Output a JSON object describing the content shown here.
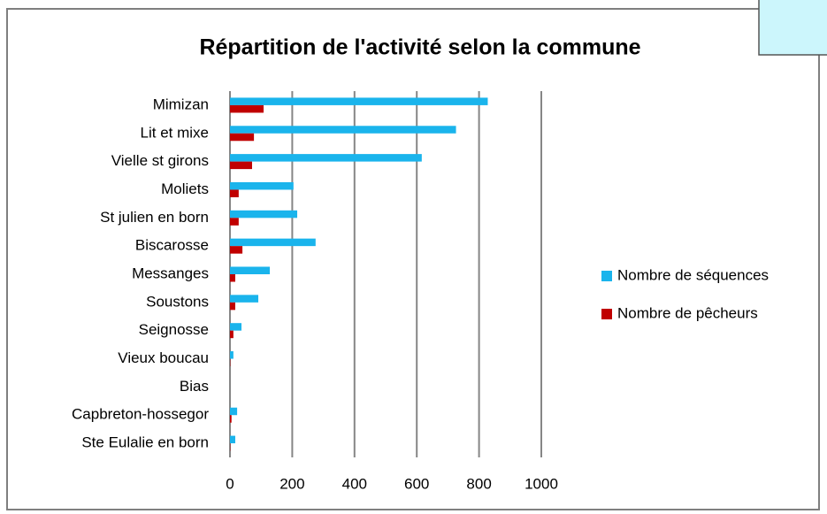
{
  "chart_data": {
    "type": "hbar",
    "title": "Répartition de l'activité selon la commune",
    "categories": [
      "Mimizan",
      "Lit et mixe",
      "Vielle st girons",
      "Moliets",
      "St julien en born",
      "Biscarosse",
      "Messanges",
      "Soustons",
      "Seignosse",
      "Vieux boucau",
      "Bias",
      "Capbreton-hossegor",
      "Ste Eulalie en born"
    ],
    "series": [
      {
        "name": "Nombre de séquences",
        "color": "#1ab4ec",
        "values": [
          828,
          726,
          616,
          204,
          216,
          275,
          128,
          91,
          37,
          11,
          0,
          23,
          17
        ]
      },
      {
        "name": "Nombre de pêcheurs",
        "color": "#c00000",
        "values": [
          108,
          77,
          71,
          28,
          28,
          40,
          17,
          17,
          11,
          1,
          0,
          5,
          1
        ]
      }
    ],
    "xlim": [
      0,
      1000
    ],
    "xticks": [
      0,
      200,
      400,
      600,
      800,
      1000
    ],
    "grid": true,
    "legend": "right"
  }
}
